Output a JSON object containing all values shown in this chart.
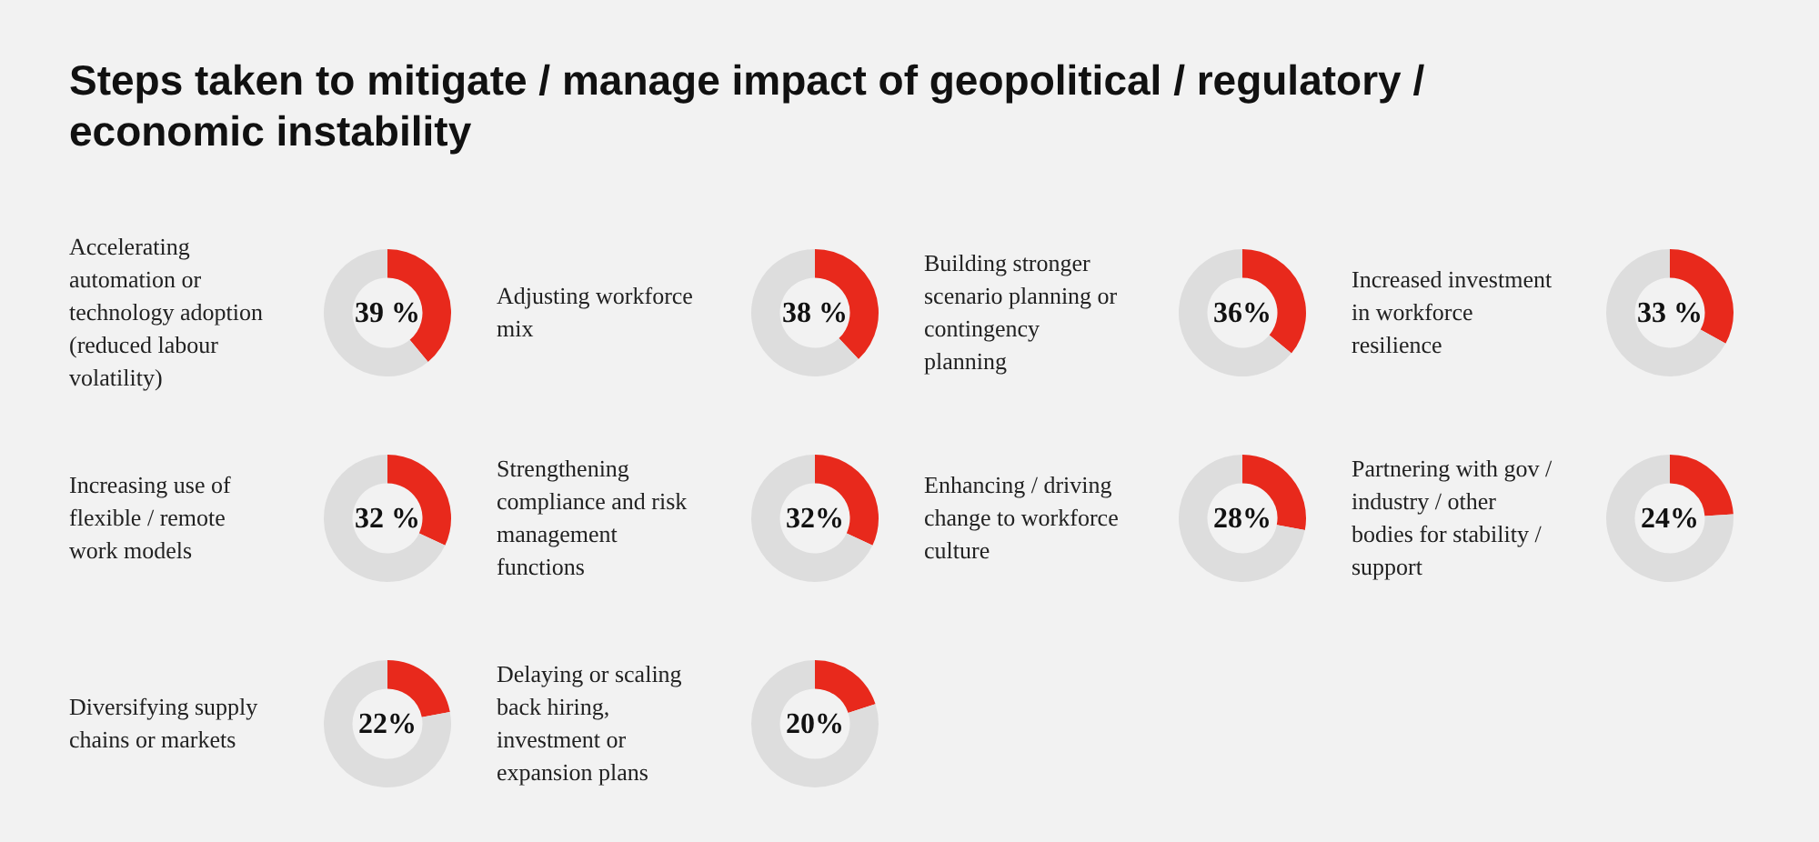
{
  "chart_data": [
    {
      "type": "other",
      "title": "Steps taken to mitigate / manage impact of geopolitical / regulatory / economic instability"
    },
    {
      "type": "donut",
      "title": "Accelerating automation or technology adoption (reduced labour volatility)",
      "categories": [
        null,
        null
      ],
      "values": [
        39,
        61
      ],
      "colors": [
        "#e8291c",
        "#dddddd"
      ],
      "annotations": [
        "39 %"
      ]
    },
    {
      "type": "donut",
      "title": "Adjusting workforce mix",
      "categories": [
        null,
        null
      ],
      "values": [
        38,
        62
      ],
      "colors": [
        "#e8291c",
        "#dddddd"
      ],
      "annotations": [
        "38 %"
      ]
    },
    {
      "type": "donut",
      "title": "Building stronger scenario planning or contingency planning",
      "categories": [
        null,
        null
      ],
      "values": [
        36,
        64
      ],
      "colors": [
        "#e8291c",
        "#dddddd"
      ],
      "annotations": [
        "36%"
      ]
    },
    {
      "type": "donut",
      "title": "Increased investment in workforce resilience",
      "categories": [
        null,
        null
      ],
      "values": [
        33,
        67
      ],
      "colors": [
        "#e8291c",
        "#dddddd"
      ],
      "annotations": [
        "33 %"
      ]
    },
    {
      "type": "donut",
      "title": "Increasing use of flexible / remote work models",
      "categories": [
        null,
        null
      ],
      "values": [
        32,
        68
      ],
      "colors": [
        "#e8291c",
        "#dddddd"
      ],
      "annotations": [
        "32 %"
      ]
    },
    {
      "type": "donut",
      "title": "Strengthening compliance and risk management functions",
      "categories": [
        null,
        null
      ],
      "values": [
        32,
        68
      ],
      "colors": [
        "#e8291c",
        "#dddddd"
      ],
      "annotations": [
        "32%"
      ]
    },
    {
      "type": "donut",
      "title": "Enhancing / driving change to workforce culture",
      "categories": [
        null,
        null
      ],
      "values": [
        28,
        72
      ],
      "colors": [
        "#e8291c",
        "#dddddd"
      ],
      "annotations": [
        "28%"
      ]
    },
    {
      "type": "donut",
      "title": "Partnering with gov / industry / other bodies for stability / support",
      "categories": [
        null,
        null
      ],
      "values": [
        24,
        76
      ],
      "colors": [
        "#e8291c",
        "#dddddd"
      ],
      "annotations": [
        "24%"
      ]
    },
    {
      "type": "donut",
      "title": "Diversifying supply chains or markets",
      "categories": [
        null,
        null
      ],
      "values": [
        22,
        78
      ],
      "colors": [
        "#e8291c",
        "#dddddd"
      ],
      "annotations": [
        "22%"
      ]
    },
    {
      "type": "donut",
      "title": "Delaying or scaling back hiring, investment or expansion plans",
      "categories": [
        null,
        null
      ],
      "values": [
        20,
        80
      ],
      "colors": [
        "#e8291c",
        "#dddddd"
      ],
      "annotations": [
        "20%"
      ]
    }
  ]
}
